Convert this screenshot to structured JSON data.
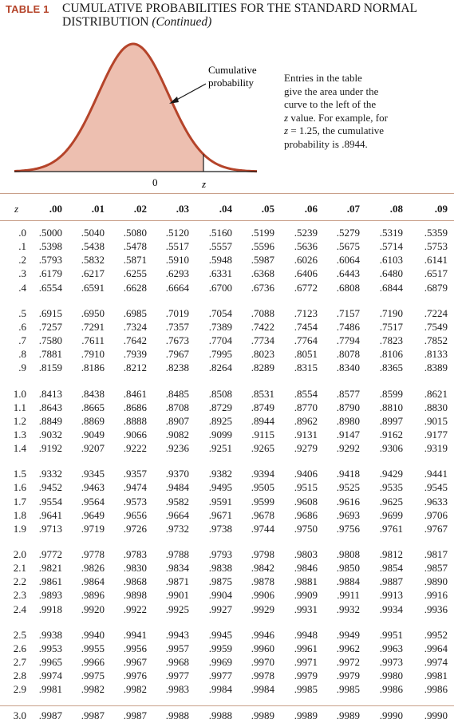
{
  "header": {
    "table_label": "TABLE 1",
    "title_line1": "CUMULATIVE PROBABILITIES FOR THE STANDARD NORMAL",
    "title_line2": "DISTRIBUTION",
    "title_suffix": "(Continued)"
  },
  "figure": {
    "callout_label_line1": "Cumulative",
    "callout_label_line2": "probability",
    "axis_zero": "0",
    "axis_z": "z",
    "colors": {
      "shaded_area": "#edbfb0",
      "curve": "#b5442a",
      "axis": "#1a1a1a"
    }
  },
  "explanation": {
    "line1": "Entries in the table",
    "line2": "give the area under the",
    "line3": "curve to the left of the",
    "line4_var": "z",
    "line4_rest": " value. For example, for",
    "line5_var": "z",
    "line5_rest": " = 1.25, the cumulative",
    "line6": "probability is .8944."
  },
  "table": {
    "z_header": "z",
    "columns": [
      ".00",
      ".01",
      ".02",
      ".03",
      ".04",
      ".05",
      ".06",
      ".07",
      ".08",
      ".09"
    ],
    "rows": [
      {
        "z": ".0",
        "values": [
          ".5000",
          ".5040",
          ".5080",
          ".5120",
          ".5160",
          ".5199",
          ".5239",
          ".5279",
          ".5319",
          ".5359"
        ]
      },
      {
        "z": ".1",
        "values": [
          ".5398",
          ".5438",
          ".5478",
          ".5517",
          ".5557",
          ".5596",
          ".5636",
          ".5675",
          ".5714",
          ".5753"
        ]
      },
      {
        "z": ".2",
        "values": [
          ".5793",
          ".5832",
          ".5871",
          ".5910",
          ".5948",
          ".5987",
          ".6026",
          ".6064",
          ".6103",
          ".6141"
        ]
      },
      {
        "z": ".3",
        "values": [
          ".6179",
          ".6217",
          ".6255",
          ".6293",
          ".6331",
          ".6368",
          ".6406",
          ".6443",
          ".6480",
          ".6517"
        ]
      },
      {
        "z": ".4",
        "values": [
          ".6554",
          ".6591",
          ".6628",
          ".6664",
          ".6700",
          ".6736",
          ".6772",
          ".6808",
          ".6844",
          ".6879"
        ]
      },
      {
        "z": ".5",
        "values": [
          ".6915",
          ".6950",
          ".6985",
          ".7019",
          ".7054",
          ".7088",
          ".7123",
          ".7157",
          ".7190",
          ".7224"
        ]
      },
      {
        "z": ".6",
        "values": [
          ".7257",
          ".7291",
          ".7324",
          ".7357",
          ".7389",
          ".7422",
          ".7454",
          ".7486",
          ".7517",
          ".7549"
        ]
      },
      {
        "z": ".7",
        "values": [
          ".7580",
          ".7611",
          ".7642",
          ".7673",
          ".7704",
          ".7734",
          ".7764",
          ".7794",
          ".7823",
          ".7852"
        ]
      },
      {
        "z": ".8",
        "values": [
          ".7881",
          ".7910",
          ".7939",
          ".7967",
          ".7995",
          ".8023",
          ".8051",
          ".8078",
          ".8106",
          ".8133"
        ]
      },
      {
        "z": ".9",
        "values": [
          ".8159",
          ".8186",
          ".8212",
          ".8238",
          ".8264",
          ".8289",
          ".8315",
          ".8340",
          ".8365",
          ".8389"
        ]
      },
      {
        "z": "1.0",
        "values": [
          ".8413",
          ".8438",
          ".8461",
          ".8485",
          ".8508",
          ".8531",
          ".8554",
          ".8577",
          ".8599",
          ".8621"
        ]
      },
      {
        "z": "1.1",
        "values": [
          ".8643",
          ".8665",
          ".8686",
          ".8708",
          ".8729",
          ".8749",
          ".8770",
          ".8790",
          ".8810",
          ".8830"
        ]
      },
      {
        "z": "1.2",
        "values": [
          ".8849",
          ".8869",
          ".8888",
          ".8907",
          ".8925",
          ".8944",
          ".8962",
          ".8980",
          ".8997",
          ".9015"
        ]
      },
      {
        "z": "1.3",
        "values": [
          ".9032",
          ".9049",
          ".9066",
          ".9082",
          ".9099",
          ".9115",
          ".9131",
          ".9147",
          ".9162",
          ".9177"
        ]
      },
      {
        "z": "1.4",
        "values": [
          ".9192",
          ".9207",
          ".9222",
          ".9236",
          ".9251",
          ".9265",
          ".9279",
          ".9292",
          ".9306",
          ".9319"
        ]
      },
      {
        "z": "1.5",
        "values": [
          ".9332",
          ".9345",
          ".9357",
          ".9370",
          ".9382",
          ".9394",
          ".9406",
          ".9418",
          ".9429",
          ".9441"
        ]
      },
      {
        "z": "1.6",
        "values": [
          ".9452",
          ".9463",
          ".9474",
          ".9484",
          ".9495",
          ".9505",
          ".9515",
          ".9525",
          ".9535",
          ".9545"
        ]
      },
      {
        "z": "1.7",
        "values": [
          ".9554",
          ".9564",
          ".9573",
          ".9582",
          ".9591",
          ".9599",
          ".9608",
          ".9616",
          ".9625",
          ".9633"
        ]
      },
      {
        "z": "1.8",
        "values": [
          ".9641",
          ".9649",
          ".9656",
          ".9664",
          ".9671",
          ".9678",
          ".9686",
          ".9693",
          ".9699",
          ".9706"
        ]
      },
      {
        "z": "1.9",
        "values": [
          ".9713",
          ".9719",
          ".9726",
          ".9732",
          ".9738",
          ".9744",
          ".9750",
          ".9756",
          ".9761",
          ".9767"
        ]
      },
      {
        "z": "2.0",
        "values": [
          ".9772",
          ".9778",
          ".9783",
          ".9788",
          ".9793",
          ".9798",
          ".9803",
          ".9808",
          ".9812",
          ".9817"
        ]
      },
      {
        "z": "2.1",
        "values": [
          ".9821",
          ".9826",
          ".9830",
          ".9834",
          ".9838",
          ".9842",
          ".9846",
          ".9850",
          ".9854",
          ".9857"
        ]
      },
      {
        "z": "2.2",
        "values": [
          ".9861",
          ".9864",
          ".9868",
          ".9871",
          ".9875",
          ".9878",
          ".9881",
          ".9884",
          ".9887",
          ".9890"
        ]
      },
      {
        "z": "2.3",
        "values": [
          ".9893",
          ".9896",
          ".9898",
          ".9901",
          ".9904",
          ".9906",
          ".9909",
          ".9911",
          ".9913",
          ".9916"
        ]
      },
      {
        "z": "2.4",
        "values": [
          ".9918",
          ".9920",
          ".9922",
          ".9925",
          ".9927",
          ".9929",
          ".9931",
          ".9932",
          ".9934",
          ".9936"
        ]
      },
      {
        "z": "2.5",
        "values": [
          ".9938",
          ".9940",
          ".9941",
          ".9943",
          ".9945",
          ".9946",
          ".9948",
          ".9949",
          ".9951",
          ".9952"
        ]
      },
      {
        "z": "2.6",
        "values": [
          ".9953",
          ".9955",
          ".9956",
          ".9957",
          ".9959",
          ".9960",
          ".9961",
          ".9962",
          ".9963",
          ".9964"
        ]
      },
      {
        "z": "2.7",
        "values": [
          ".9965",
          ".9966",
          ".9967",
          ".9968",
          ".9969",
          ".9970",
          ".9971",
          ".9972",
          ".9973",
          ".9974"
        ]
      },
      {
        "z": "2.8",
        "values": [
          ".9974",
          ".9975",
          ".9976",
          ".9977",
          ".9977",
          ".9978",
          ".9979",
          ".9979",
          ".9980",
          ".9981"
        ]
      },
      {
        "z": "2.9",
        "values": [
          ".9981",
          ".9982",
          ".9982",
          ".9983",
          ".9984",
          ".9984",
          ".9985",
          ".9985",
          ".9986",
          ".9986"
        ]
      },
      {
        "z": "3.0",
        "values": [
          ".9987",
          ".9987",
          ".9987",
          ".9988",
          ".9988",
          ".9989",
          ".9989",
          ".9989",
          ".9990",
          ".9990"
        ]
      }
    ]
  }
}
